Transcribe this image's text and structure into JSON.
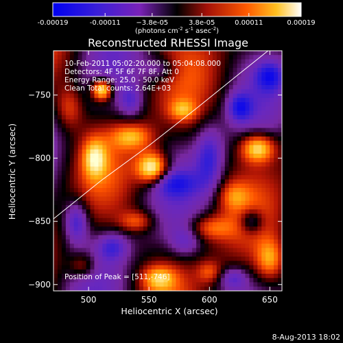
{
  "chart_data": {
    "type": "heatmap",
    "title": "Reconstructed RHESSI Image",
    "xlabel": "Heliocentric X (arcsec)",
    "ylabel": "Heliocentric Y (arcsec)",
    "xlim": [
      471,
      660
    ],
    "ylim": [
      -905,
      -715
    ],
    "x_ticks": [
      500,
      550,
      600,
      650
    ],
    "y_ticks": [
      -900,
      -850,
      -800,
      -750
    ],
    "colorbar": {
      "min": -0.00019,
      "max": 0.00019,
      "tick_values": [
        -0.00019,
        -0.00011,
        -3.8e-05,
        3.8e-05,
        0.00011,
        0.00019
      ],
      "tick_labels": [
        "-0.00019",
        "-0.00011",
        "−3.8e-05",
        "3.8e-05",
        "0.00011",
        "0.00019"
      ],
      "units_label": "(photons cm",
      "units_exp1": "-2",
      "units_mid": " s",
      "units_exp2": "-1",
      "units_end": " asec",
      "units_exp3": "-2",
      "units_close": ")"
    },
    "annotations": {
      "time": "10-Feb-2011 05:02:20.000  to 05:04:08.000",
      "detectors": "Detectors: 4F 5F 6F 7F 8F, Att 0",
      "energy": "Energy Range: 25.0 - 50.0 keV",
      "clean": "Clean     Total counts: 2.64E+03",
      "peak": "Position of Peak = [511,-746]"
    },
    "peak": [
      511,
      -746
    ],
    "limb_curve": [
      [
        471,
        -848
      ],
      [
        510,
        -818
      ],
      [
        550,
        -790
      ],
      [
        590,
        -760
      ],
      [
        625,
        -733
      ],
      [
        655,
        -710
      ]
    ],
    "sources": [
      {
        "x": 511,
        "y": -746,
        "amp": 1.0,
        "sx": 6,
        "sy": 6
      },
      {
        "x": 553,
        "y": -808,
        "amp": 1.0,
        "sx": 9,
        "sy": 9
      },
      {
        "x": 640,
        "y": -792,
        "amp": 0.85,
        "sx": 10,
        "sy": 8
      },
      {
        "x": 536,
        "y": -783,
        "amp": 0.55,
        "sx": 12,
        "sy": 7
      },
      {
        "x": 578,
        "y": -762,
        "amp": 0.45,
        "sx": 8,
        "sy": 6
      },
      {
        "x": 505,
        "y": -800,
        "amp": 0.6,
        "sx": 7,
        "sy": 11
      },
      {
        "x": 540,
        "y": -850,
        "amp": 0.45,
        "sx": 10,
        "sy": 6
      },
      {
        "x": 600,
        "y": -855,
        "amp": 0.45,
        "sx": 14,
        "sy": 7
      },
      {
        "x": 620,
        "y": -830,
        "amp": 0.35,
        "sx": 9,
        "sy": 8
      },
      {
        "x": 484,
        "y": -760,
        "amp": 0.4,
        "sx": 8,
        "sy": 12
      },
      {
        "x": 495,
        "y": -885,
        "amp": 0.4,
        "sx": 8,
        "sy": 7
      },
      {
        "x": 558,
        "y": -895,
        "amp": 0.55,
        "sx": 10,
        "sy": 7
      },
      {
        "x": 650,
        "y": -880,
        "amp": 0.55,
        "sx": 8,
        "sy": 11
      },
      {
        "x": 600,
        "y": -890,
        "amp": 0.35,
        "sx": 7,
        "sy": 6
      },
      {
        "x": 490,
        "y": -850,
        "amp": -0.6,
        "sx": 7,
        "sy": 12
      },
      {
        "x": 570,
        "y": -820,
        "amp": -0.4,
        "sx": 14,
        "sy": 7
      },
      {
        "x": 600,
        "y": -800,
        "amp": -0.5,
        "sx": 8,
        "sy": 18
      },
      {
        "x": 625,
        "y": -760,
        "amp": -0.55,
        "sx": 7,
        "sy": 8
      },
      {
        "x": 650,
        "y": -735,
        "amp": -0.5,
        "sx": 8,
        "sy": 8
      },
      {
        "x": 535,
        "y": -755,
        "amp": -0.4,
        "sx": 7,
        "sy": 9
      },
      {
        "x": 520,
        "y": -870,
        "amp": -0.45,
        "sx": 9,
        "sy": 8
      },
      {
        "x": 580,
        "y": -865,
        "amp": -0.35,
        "sx": 9,
        "sy": 9
      },
      {
        "x": 635,
        "y": -850,
        "amp": -0.5,
        "sx": 7,
        "sy": 7
      },
      {
        "x": 560,
        "y": -730,
        "amp": -0.35,
        "sx": 10,
        "sy": 7
      },
      {
        "x": 620,
        "y": -895,
        "amp": -0.4,
        "sx": 8,
        "sy": 6
      }
    ]
  },
  "footer_date": "8-Aug-2013 18:02"
}
